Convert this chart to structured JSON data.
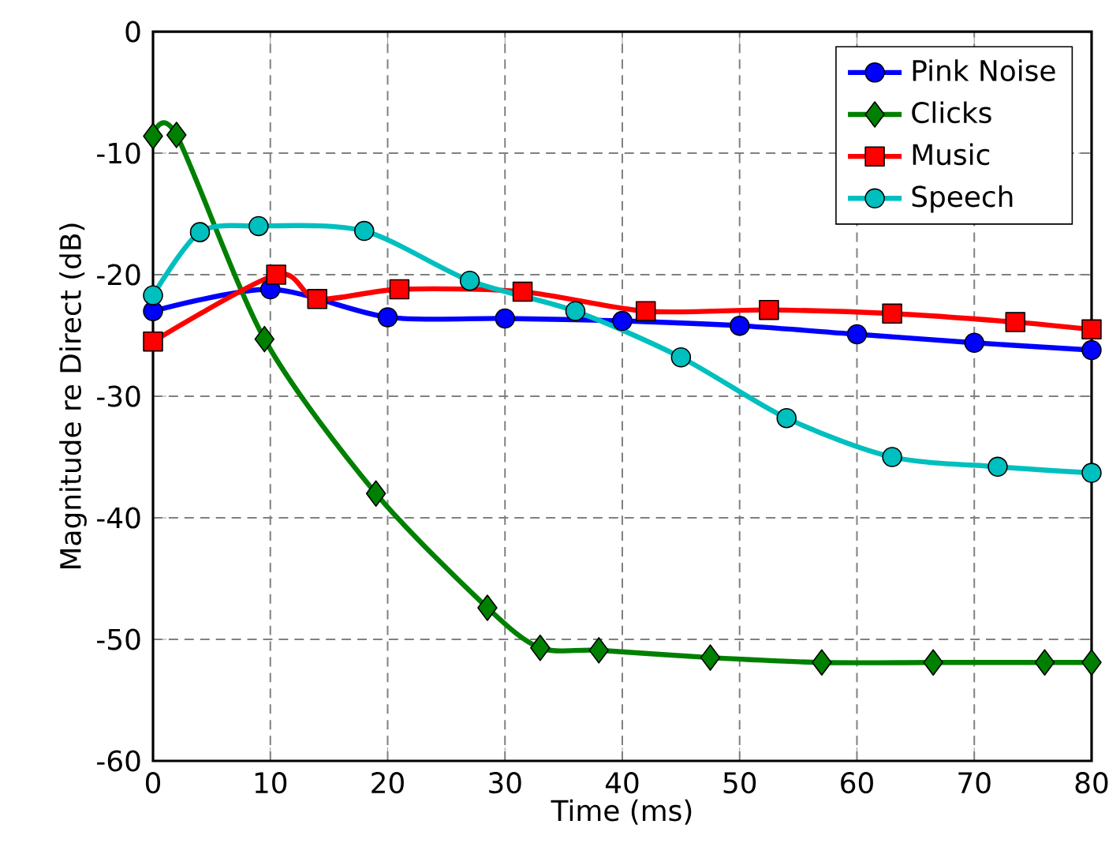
{
  "chart_data": {
    "type": "line",
    "xlabel": "Time (ms)",
    "ylabel": "Magnitude re Direct (dB)",
    "xlim": [
      0,
      80
    ],
    "ylim": [
      -60,
      0
    ],
    "xticks": [
      0,
      10,
      20,
      30,
      40,
      50,
      60,
      70,
      80
    ],
    "yticks": [
      -60,
      -50,
      -40,
      -30,
      -20,
      -10,
      0
    ],
    "grid": true,
    "legend": "top right",
    "series": [
      {
        "name": "Pink Noise",
        "color": "#0000ff",
        "marker": "circle",
        "x": [
          0,
          10,
          20,
          30,
          40,
          50,
          60,
          70,
          80
        ],
        "values": [
          -23,
          -21.2,
          -23.5,
          -23.6,
          -23.8,
          -24.2,
          -24.9,
          -25.6,
          -26.2
        ]
      },
      {
        "name": "Clicks",
        "color": "#008000",
        "marker": "diamond",
        "x": [
          0,
          2,
          9.5,
          19,
          28.5,
          33,
          38,
          47.5,
          57,
          66.5,
          76,
          80
        ],
        "values": [
          -8.6,
          -8.5,
          -25.3,
          -38,
          -47.4,
          -50.7,
          -50.9,
          -51.5,
          -51.9,
          -51.9,
          -51.9,
          -51.9
        ]
      },
      {
        "name": "Music",
        "color": "#ff0000",
        "marker": "square",
        "x": [
          0,
          10.5,
          14,
          21,
          31.5,
          42,
          52.5,
          63,
          73.5,
          80
        ],
        "values": [
          -25.5,
          -20,
          -22,
          -21.2,
          -21.4,
          -23,
          -22.9,
          -23.2,
          -23.9,
          -24.5
        ]
      },
      {
        "name": "Speech",
        "color": "#00bfbf",
        "marker": "circle",
        "x": [
          0,
          4,
          9,
          18,
          27,
          36,
          45,
          54,
          63,
          72,
          80
        ],
        "values": [
          -21.7,
          -16.5,
          -16,
          -16.4,
          -20.5,
          -23,
          -26.8,
          -31.8,
          -35,
          -35.8,
          -36.3
        ]
      }
    ]
  }
}
